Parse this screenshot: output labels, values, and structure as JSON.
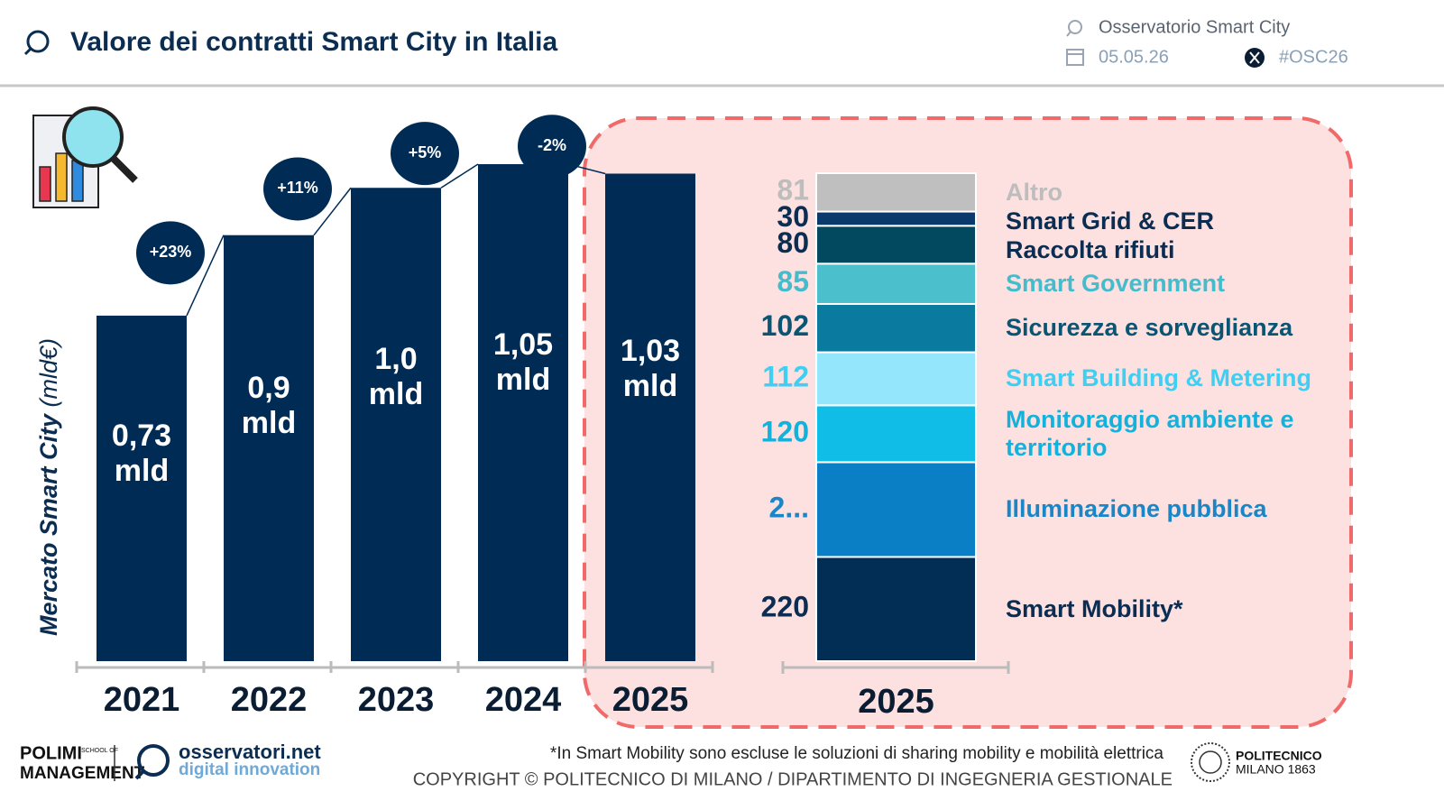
{
  "header": {
    "title": "Valore dei contratti Smart City in Italia",
    "observatory": "Osservatorio Smart City",
    "date": "05.05.26",
    "hashtag": "#OSC26"
  },
  "chart_data": [
    {
      "type": "bar",
      "y_label": "Mercato Smart City",
      "y_unit": "(mld€)",
      "categories": [
        "2021",
        "2022",
        "2023",
        "2024",
        "2025"
      ],
      "values": [
        0.73,
        0.9,
        1.0,
        1.05,
        1.03
      ],
      "value_labels": [
        "0,73 mld",
        "0,9 mld",
        "1,0 mld",
        "1,05 mld",
        "1,03 mld"
      ],
      "color": "#002b55",
      "changes": [
        null,
        23,
        11,
        5,
        -2
      ],
      "change_labels": [
        null,
        "+23%",
        "+11%",
        "+5%",
        "-2%"
      ]
    },
    {
      "type": "stacked_bar",
      "categories": [
        "2025"
      ],
      "series": [
        {
          "name": "Altro",
          "color": "#bfbfbf",
          "label_color": "#bdbdbd",
          "values": [
            81
          ],
          "value_labels": [
            "81"
          ]
        },
        {
          "name": "Smart Grid & CER",
          "color": "#0a3a6b",
          "label_color": "#0b2d52",
          "values": [
            30
          ],
          "value_labels": [
            "30"
          ]
        },
        {
          "name": "Raccolta rifiuti",
          "color": "#02485f",
          "label_color": "#0b2d52",
          "values": [
            80
          ],
          "value_labels": [
            "80"
          ]
        },
        {
          "name": "Smart Government",
          "color": "#4bbfcc",
          "label_color": "#45bccb",
          "values": [
            85
          ],
          "value_labels": [
            "85"
          ]
        },
        {
          "name": "Sicurezza e sorveglianza",
          "color": "#0a7a9f",
          "label_color": "#0a5573",
          "values": [
            102
          ],
          "value_labels": [
            "102"
          ]
        },
        {
          "name": "Smart Building & Metering",
          "color": "#93e6fb",
          "label_color": "#3fcff3",
          "values": [
            112
          ],
          "value_labels": [
            "112"
          ]
        },
        {
          "name": "Monitoraggio ambiente e territorio",
          "color": "#0fbde6",
          "label_color": "#12b2dd",
          "values": [
            120
          ],
          "value_labels": [
            "120"
          ]
        },
        {
          "name": "Illuminazione pubblica",
          "color": "#0a7fc6",
          "label_color": "#1886c7",
          "values": [
            200
          ],
          "value_labels": [
            "2..."
          ]
        },
        {
          "name": "Smart Mobility*",
          "color": "#022d55",
          "label_color": "#0b2d52",
          "values": [
            220
          ],
          "value_labels": [
            "220"
          ]
        }
      ]
    }
  ],
  "footer": {
    "note": "*In Smart Mobility sono escluse le soluzioni di sharing mobility e mobilità elettrica",
    "copyright": "COPYRIGHT © POLITECNICO DI MILANO / DIPARTIMENTO DI INGEGNERIA GESTIONALE",
    "polimi": "POLIMI",
    "school": "SCHOOL OF",
    "management": "MANAGEMENT",
    "osservatori": "osservatori.net",
    "digital": "digital innovation",
    "politecnico": "POLITECNICO",
    "milano": "MILANO 1863"
  }
}
